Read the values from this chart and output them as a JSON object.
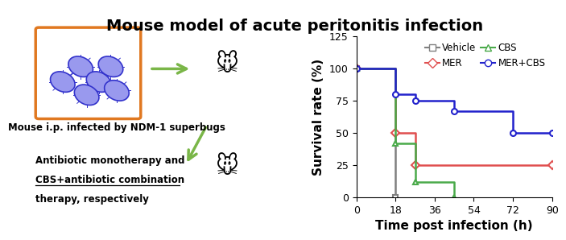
{
  "title": "Mouse model of acute peritonitis infection",
  "xlabel": "Time post infection (h)",
  "ylabel": "Survival rate (%)",
  "xlim": [
    0,
    90
  ],
  "ylim": [
    0,
    125
  ],
  "yticks": [
    0,
    25,
    50,
    75,
    100,
    125
  ],
  "xticks": [
    0,
    18,
    36,
    54,
    72,
    90
  ],
  "vehicle": {
    "x": [
      0,
      18,
      18
    ],
    "y": [
      100,
      100,
      0
    ],
    "mx": [
      0,
      18
    ],
    "my": [
      100,
      0
    ],
    "color": "#808080",
    "marker": "s",
    "label": "Vehicle"
  },
  "mer": {
    "x": [
      0,
      18,
      18,
      27,
      27,
      90
    ],
    "y": [
      100,
      100,
      50,
      50,
      25,
      25
    ],
    "mx": [
      0,
      18,
      27,
      90
    ],
    "my": [
      100,
      50,
      25,
      25
    ],
    "color": "#e05050",
    "marker": "D",
    "label": "MER"
  },
  "cbs": {
    "x": [
      0,
      18,
      18,
      27,
      27,
      45,
      45
    ],
    "y": [
      100,
      100,
      42,
      42,
      12,
      12,
      0
    ],
    "mx": [
      0,
      18,
      27,
      45
    ],
    "my": [
      100,
      42,
      12,
      0
    ],
    "color": "#4aaa4a",
    "marker": "^",
    "label": "CBS"
  },
  "mer_cbs": {
    "x": [
      0,
      18,
      18,
      27,
      27,
      45,
      45,
      72,
      72,
      90
    ],
    "y": [
      100,
      100,
      80,
      80,
      75,
      75,
      67,
      67,
      50,
      50
    ],
    "mx": [
      0,
      18,
      27,
      45,
      72,
      90
    ],
    "my": [
      100,
      80,
      75,
      67,
      50,
      50
    ],
    "color": "#2222cc",
    "marker": "o",
    "label": "MER+CBS"
  },
  "legend_fontsize": 8.5,
  "axis_fontsize": 11,
  "title_fontsize": 14,
  "left_panel_text1": "Mouse i.p. infected by NDM-1 superbugs",
  "left_panel_text2_line1": "Antibiotic monotherapy and",
  "left_panel_text2_line2": "CBS+antibiotic combination",
  "left_panel_text2_line3": "therapy, respectively",
  "bacteria_positions": [
    [
      0.12,
      0.66
    ],
    [
      0.18,
      0.73
    ],
    [
      0.24,
      0.66
    ],
    [
      0.2,
      0.6
    ],
    [
      0.28,
      0.73
    ],
    [
      0.3,
      0.62
    ]
  ],
  "bacteria_color_edge": "#3333cc",
  "bacteria_color_face": "#9999ee",
  "box_color": "#e07820",
  "arrow1_color": "#7ab648",
  "arrow2_color": "#7ab648"
}
